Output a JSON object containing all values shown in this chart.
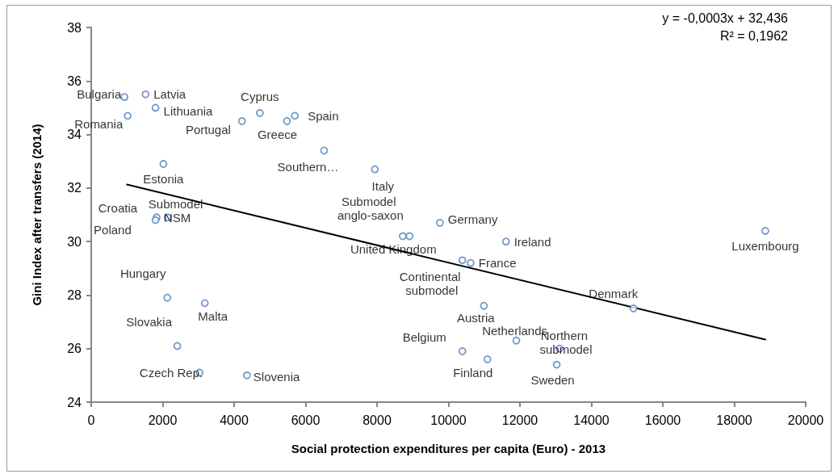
{
  "chart_data": {
    "type": "scatter",
    "xlabel": "Social protection expenditures per capita (Euro) - 2013",
    "ylabel": "Gini Index after transfers (2014)",
    "annotations": [
      "y = -0,0003x + 32,436",
      "R² = 0,1962"
    ],
    "xlim": [
      0,
      20000
    ],
    "xticks": [
      0,
      2000,
      4000,
      6000,
      8000,
      10000,
      12000,
      14000,
      16000,
      18000,
      20000
    ],
    "ylim": [
      24,
      38
    ],
    "yticks": [
      24,
      26,
      28,
      30,
      32,
      34,
      36,
      38
    ],
    "grid": false,
    "marker": "circle",
    "series": [
      {
        "color": "#4f81bd",
        "x": [
          930,
          1520,
          1800,
          1020,
          4220,
          4720,
          5480,
          5700,
          6520,
          2020,
          7940,
          1830,
          1800,
          2140,
          8720,
          8910,
          9760,
          11610,
          18870,
          10390,
          10620,
          10990,
          15180,
          11900,
          13110,
          10390,
          11090,
          13030,
          2130,
          3180,
          2410,
          3030,
          4360
        ],
        "values": [
          35.4,
          35.5,
          35.0,
          34.7,
          34.5,
          34.8,
          34.5,
          34.7,
          33.4,
          32.9,
          32.7,
          30.9,
          30.8,
          30.9,
          30.2,
          30.2,
          30.7,
          30.0,
          30.4,
          29.3,
          29.2,
          27.6,
          27.5,
          26.3,
          26.0,
          25.9,
          25.6,
          25.4,
          27.9,
          27.7,
          26.1,
          25.1,
          25.0
        ],
        "value_labels": [
          "Bulgaria",
          "Latvia",
          "Lithuania",
          "Romania",
          "Portugal",
          "Cyprus",
          "Greece",
          "Spain",
          "Southern…",
          "Estonia",
          "Italy",
          "Croatia",
          "Poland",
          "Submodel NSM",
          "Submodel anglo-saxon",
          "United Kingdom",
          "Germany",
          "Ireland",
          "Luxembourg",
          "Continental submodel",
          "France",
          "Austria",
          "Denmark",
          "Netherlands",
          "Northern submodel",
          "Belgium",
          "Finland",
          "Sweden",
          "Hungary",
          "Malta",
          "Slovakia",
          "Czech Rep.",
          "Slovenia"
        ]
      },
      {
        "type": "line",
        "color": "#000000",
        "marker": "none",
        "x": [
          1000,
          18870
        ],
        "values": [
          32.13,
          26.34
        ]
      }
    ]
  }
}
